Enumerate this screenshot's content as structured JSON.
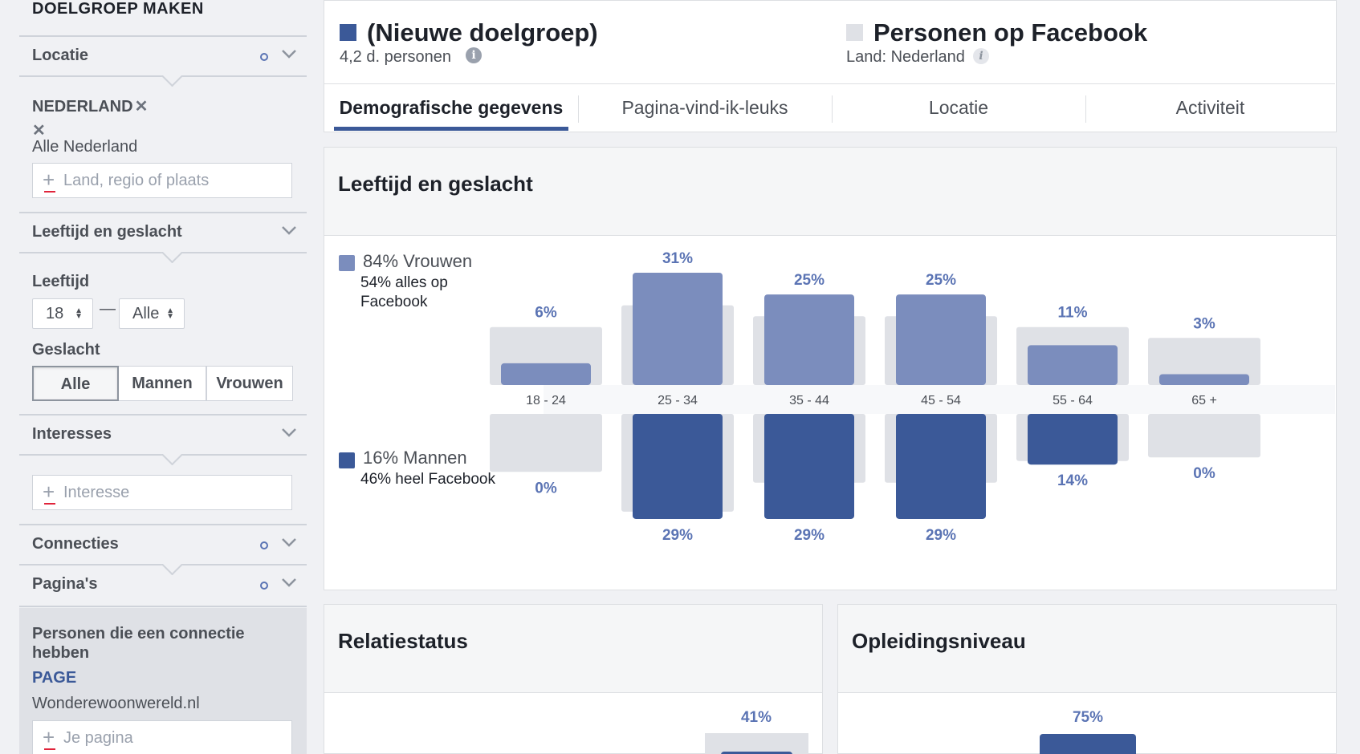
{
  "sidebar": {
    "title": "DOELGROEP MAKEN",
    "location": {
      "heading": "Locatie",
      "country": "NEDERLAND",
      "remove_symbol": "✕",
      "remove_symbol_2": "✕",
      "scope": "Alle Nederland",
      "placeholder": "Land, regio of plaats"
    },
    "age_gender": {
      "heading": "Leeftijd en geslacht",
      "age_label": "Leeftijd",
      "age_min": "18",
      "age_sep": "—",
      "age_max": "Alle",
      "gender_label": "Geslacht",
      "gender_options": [
        "Alle",
        "Mannen",
        "Vrouwen"
      ],
      "gender_selected": "Alle"
    },
    "interests": {
      "heading": "Interesses",
      "placeholder": "Interesse"
    },
    "connections": {
      "heading": "Connecties"
    },
    "pages": {
      "heading": "Pagina's",
      "connected_label": "Personen die een connectie hebben",
      "type_label": "PAGE",
      "page_name": "Wonderewoonwereld.nl",
      "placeholder": "Je pagina"
    }
  },
  "header": {
    "audience": {
      "title": "(Nieuwe doelgroep)",
      "subtitle": "4,2 d. personen",
      "color": "#3b5998"
    },
    "comparison": {
      "title": "Personen op Facebook",
      "subtitle": "Land: Nederland",
      "color": "#dfe1e6"
    },
    "tabs": [
      {
        "label": "Demografische gegevens",
        "active": true
      },
      {
        "label": "Pagina-vind-ik-leuks",
        "active": false
      },
      {
        "label": "Locatie",
        "active": false
      },
      {
        "label": "Activiteit",
        "active": false
      }
    ]
  },
  "age_panel": {
    "title": "Leeftijd en geslacht",
    "women": {
      "main": "84% Vrouwen",
      "sub": "54% alles op Facebook",
      "color": "#7b8dbd"
    },
    "men": {
      "main": "16% Mannen",
      "sub": "46% heel Facebook",
      "color": "#3b5998"
    }
  },
  "chart_data": [
    {
      "type": "bar",
      "categories": [
        "18 - 24",
        "25 - 34",
        "35 - 44",
        "45 - 54",
        "55 - 64",
        "65 +"
      ],
      "series": [
        {
          "name": "Vrouwen",
          "values": [
            6,
            31,
            25,
            25,
            11,
            3
          ],
          "labels": [
            "6%",
            "31%",
            "25%",
            "25%",
            "11%",
            "3%"
          ],
          "color": "#7b8dbd"
        },
        {
          "name": "Mannen",
          "values": [
            0,
            29,
            29,
            29,
            14,
            0
          ],
          "labels": [
            "0%",
            "29%",
            "29%",
            "29%",
            "14%",
            "0%"
          ],
          "color": "#3b5998"
        }
      ],
      "facebook_share": {
        "women": [
          16,
          22,
          19,
          19,
          16,
          13
        ],
        "men": [
          16,
          27,
          19,
          19,
          13,
          12
        ]
      },
      "background_color": "#dfe1e6",
      "ylabel": "",
      "xlabel": ""
    },
    {
      "type": "bar",
      "categories": [
        ""
      ],
      "values": [
        41
      ],
      "labels": [
        "41%"
      ]
    },
    {
      "type": "bar",
      "categories": [
        ""
      ],
      "values": [
        75
      ],
      "labels": [
        "75%"
      ]
    }
  ],
  "relation_panel": {
    "title": "Relatiestatus",
    "value_label": "41%"
  },
  "education_panel": {
    "title": "Opleidingsniveau",
    "value_label": "75%"
  }
}
